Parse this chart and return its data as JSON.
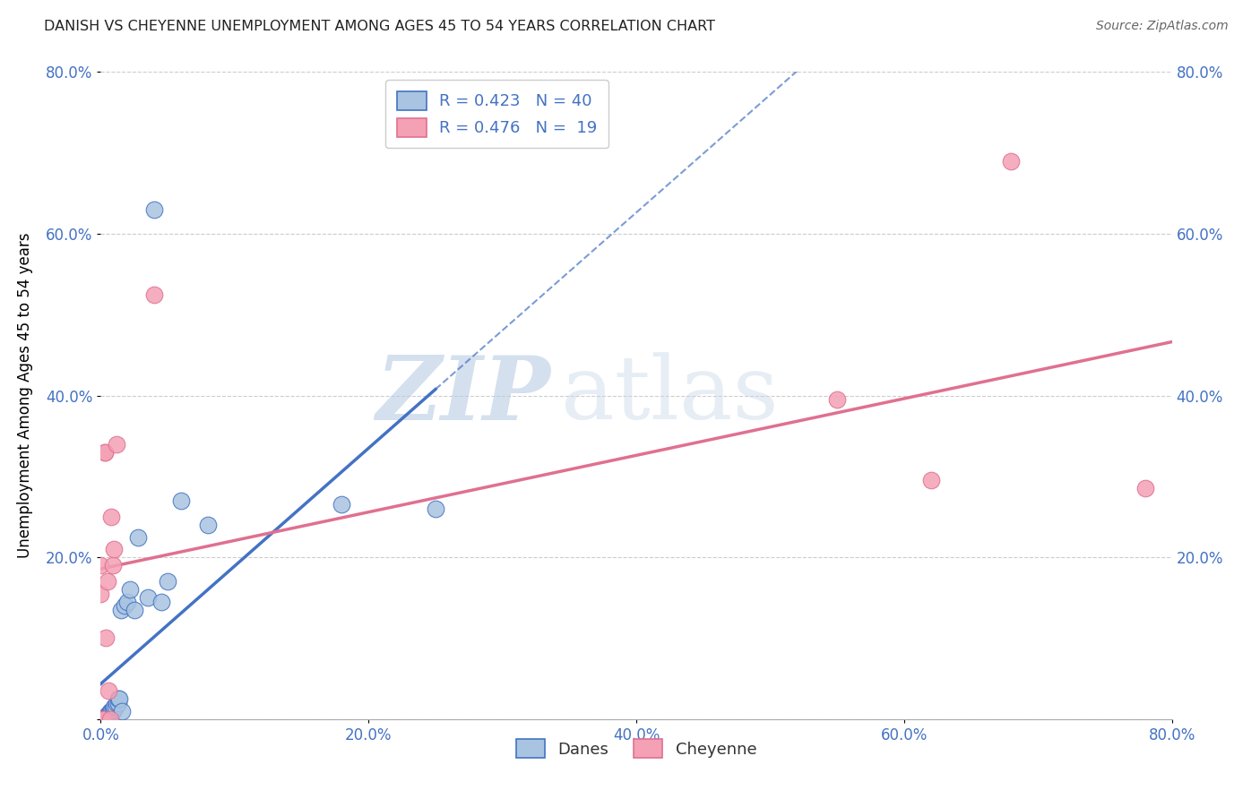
{
  "title": "DANISH VS CHEYENNE UNEMPLOYMENT AMONG AGES 45 TO 54 YEARS CORRELATION CHART",
  "source": "Source: ZipAtlas.com",
  "ylabel": "Unemployment Among Ages 45 to 54 years",
  "xlim": [
    0.0,
    0.8
  ],
  "ylim": [
    0.0,
    0.8
  ],
  "xticks": [
    0.0,
    0.2,
    0.4,
    0.6,
    0.8
  ],
  "yticks": [
    0.0,
    0.2,
    0.4,
    0.6,
    0.8
  ],
  "xticklabels": [
    "0.0%",
    "20.0%",
    "40.0%",
    "60.0%",
    "80.0%"
  ],
  "yticklabels": [
    "",
    "20.0%",
    "40.0%",
    "60.0%",
    "80.0%"
  ],
  "danes_color": "#a8c4e0",
  "cheyenne_color": "#f4a0b5",
  "danes_line_color": "#4472c4",
  "cheyenne_line_color": "#e07090",
  "danes_R": 0.423,
  "danes_N": 40,
  "cheyenne_R": 0.476,
  "cheyenne_N": 19,
  "legend_label_danes": "Danes",
  "legend_label_cheyenne": "Cheyenne",
  "watermark_zip": "ZIP",
  "watermark_atlas": "atlas",
  "danes_x": [
    0.0,
    0.002,
    0.002,
    0.003,
    0.003,
    0.004,
    0.004,
    0.005,
    0.005,
    0.005,
    0.006,
    0.006,
    0.007,
    0.007,
    0.008,
    0.008,
    0.009,
    0.009,
    0.01,
    0.01,
    0.011,
    0.012,
    0.013,
    0.013,
    0.014,
    0.015,
    0.016,
    0.018,
    0.02,
    0.022,
    0.025,
    0.028,
    0.035,
    0.04,
    0.045,
    0.05,
    0.06,
    0.08,
    0.18,
    0.25
  ],
  "danes_y": [
    0.0,
    0.0,
    0.0,
    0.0,
    0.0,
    0.0,
    0.0,
    0.0,
    0.005,
    0.005,
    0.005,
    0.005,
    0.005,
    0.01,
    0.01,
    0.01,
    0.01,
    0.012,
    0.012,
    0.015,
    0.015,
    0.02,
    0.02,
    0.025,
    0.025,
    0.135,
    0.01,
    0.14,
    0.145,
    0.16,
    0.135,
    0.225,
    0.15,
    0.63,
    0.145,
    0.17,
    0.27,
    0.24,
    0.265,
    0.26
  ],
  "cheyenne_x": [
    0.0,
    0.0,
    0.0,
    0.002,
    0.003,
    0.003,
    0.004,
    0.005,
    0.006,
    0.007,
    0.008,
    0.009,
    0.01,
    0.012,
    0.04,
    0.55,
    0.62,
    0.68,
    0.78
  ],
  "cheyenne_y": [
    0.0,
    0.19,
    0.155,
    0.0,
    0.33,
    0.33,
    0.1,
    0.17,
    0.035,
    0.0,
    0.25,
    0.19,
    0.21,
    0.34,
    0.525,
    0.395,
    0.295,
    0.69,
    0.285
  ]
}
